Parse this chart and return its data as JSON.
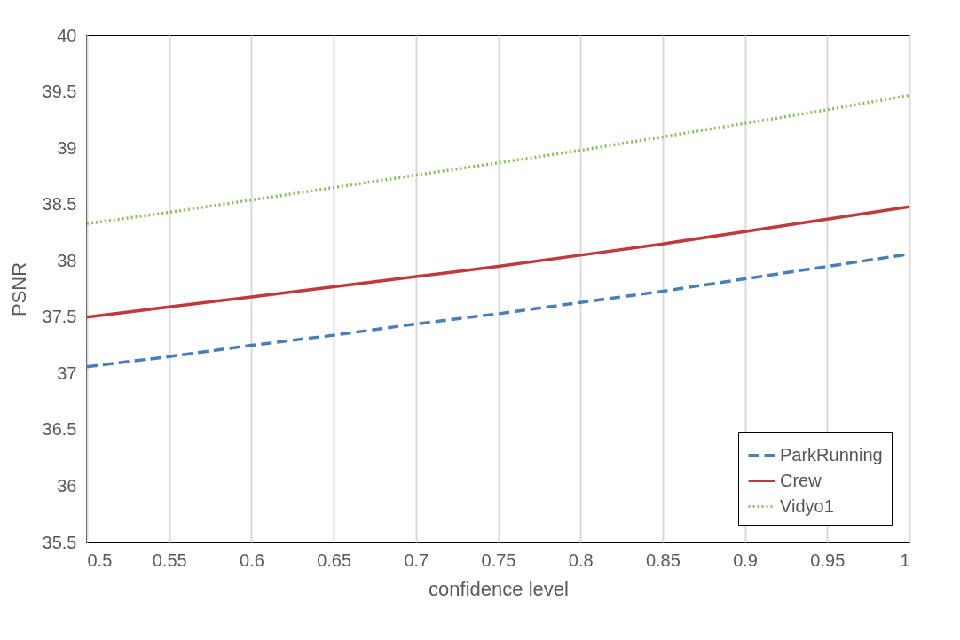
{
  "chart_data": {
    "type": "line",
    "xlabel": "confidence level",
    "ylabel": "PSNR",
    "x": [
      0.5,
      0.55,
      0.6,
      0.65,
      0.7,
      0.75,
      0.8,
      0.85,
      0.9,
      0.95,
      1
    ],
    "series": [
      {
        "name": "ParkRunning",
        "color": "#4a7ebb",
        "line_style": "dashed",
        "values": [
          37.06,
          37.15,
          37.25,
          37.34,
          37.44,
          37.53,
          37.63,
          37.73,
          37.84,
          37.95,
          38.06
        ]
      },
      {
        "name": "Crew",
        "color": "#c0393b",
        "line_style": "solid",
        "values": [
          37.5,
          37.59,
          37.68,
          37.77,
          37.86,
          37.95,
          38.05,
          38.15,
          38.26,
          38.37,
          38.48
        ]
      },
      {
        "name": "Vidyo1",
        "color": "#8cbf5a",
        "line_style": "dotted",
        "values": [
          38.33,
          38.43,
          38.54,
          38.65,
          38.76,
          38.87,
          38.98,
          39.1,
          39.22,
          39.34,
          39.47
        ]
      }
    ],
    "xlim": [
      0.5,
      1
    ],
    "xticks": [
      0.5,
      0.55,
      0.6,
      0.65,
      0.7,
      0.75,
      0.8,
      0.85,
      0.9,
      0.95,
      1
    ],
    "ylim": [
      35.5,
      40
    ],
    "yticks": [
      35.5,
      36,
      36.5,
      37,
      37.5,
      38,
      38.5,
      39,
      39.5,
      40
    ],
    "grid": "x",
    "legend": "bottom right",
    "marker": "none"
  }
}
